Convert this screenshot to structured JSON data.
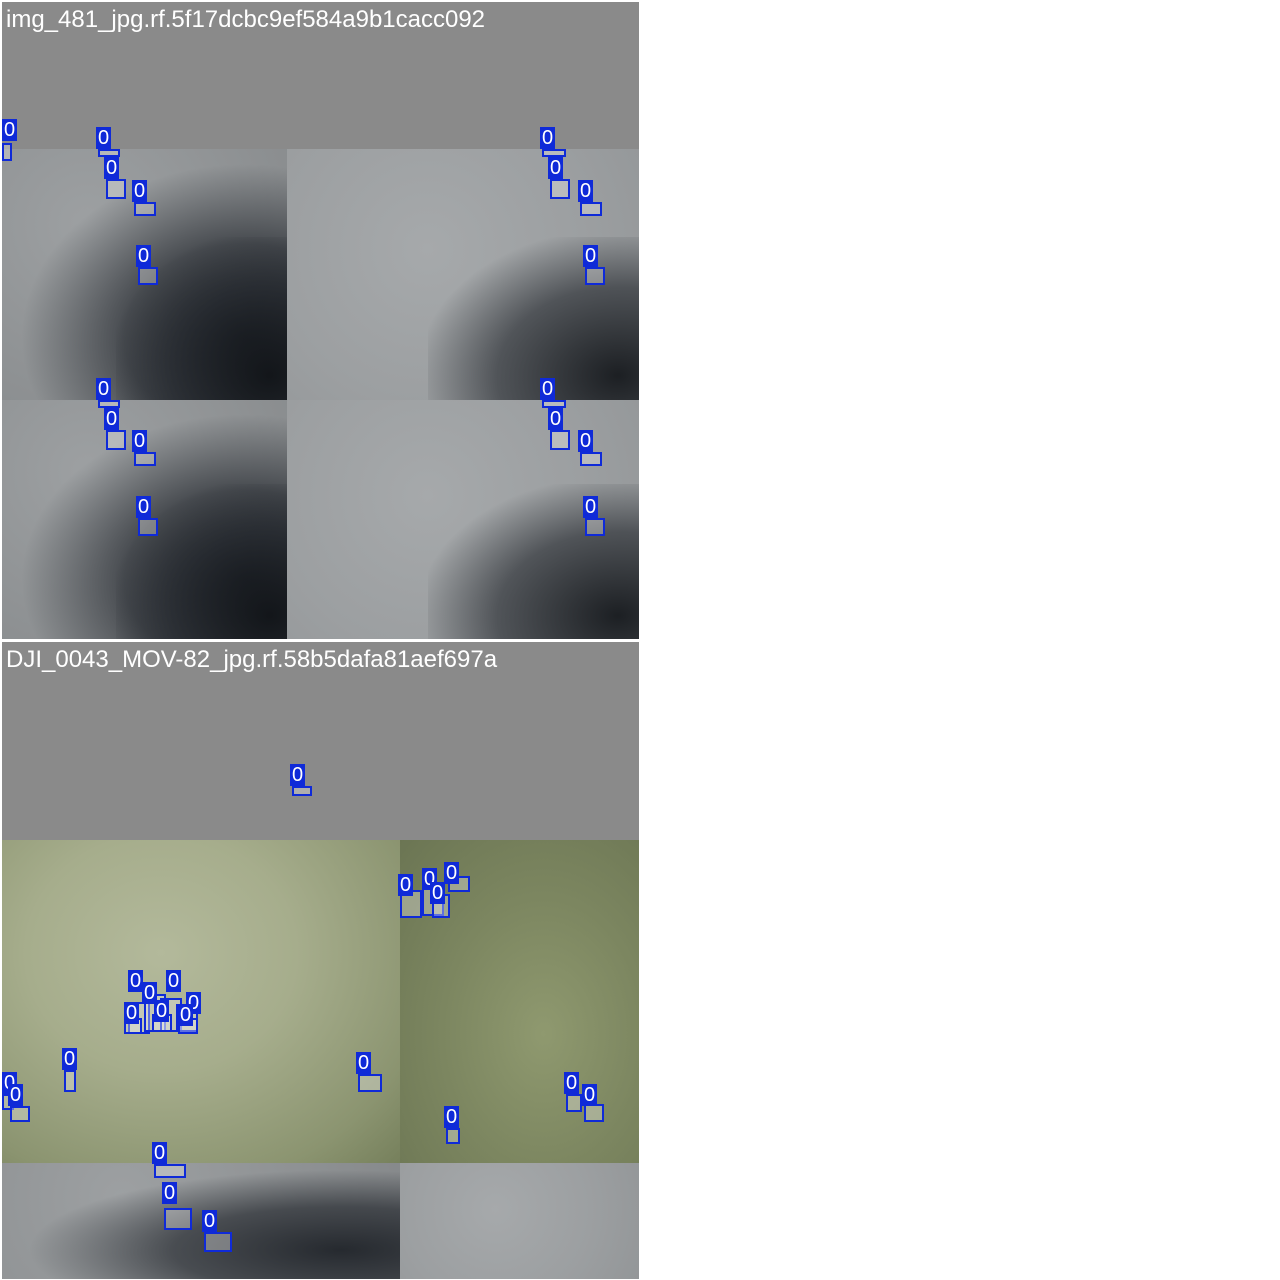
{
  "panels": [
    {
      "title": "img_481_jpg.rf.5f17dcbc9ef584a9b1cacc092"
    },
    {
      "title": "DJI_0043_MOV-82_jpg.rf.58b5dafa81aef697a"
    }
  ],
  "label": "0",
  "colors": {
    "box": "#0f2ad8",
    "header_gray": "#8a8a8a",
    "background": "#ffffff"
  }
}
